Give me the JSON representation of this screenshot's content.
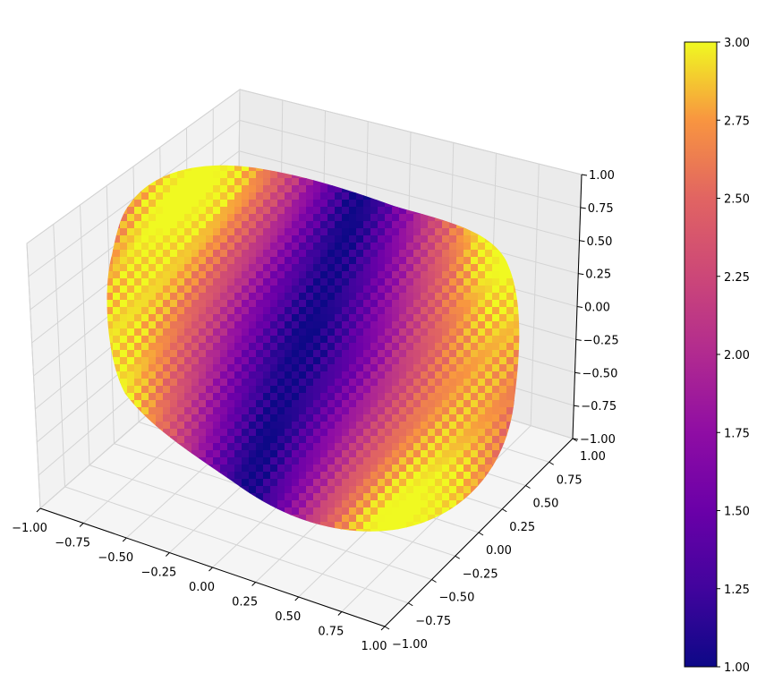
{
  "chart_data": {
    "type": "surface3d",
    "title": "",
    "colormap": "plasma",
    "x_axis": {
      "range": [
        -1.0,
        1.0
      ],
      "ticks": [
        -1.0,
        -0.75,
        -0.5,
        -0.25,
        0.0,
        0.25,
        0.5,
        0.75,
        1.0
      ],
      "tick_labels": [
        "−1.00",
        "−0.75",
        "−0.50",
        "−0.25",
        "0.00",
        "0.25",
        "0.50",
        "0.75",
        "1.00"
      ]
    },
    "y_axis": {
      "range": [
        -1.0,
        1.0
      ],
      "ticks": [
        -1.0,
        -0.75,
        -0.5,
        -0.25,
        0.0,
        0.25,
        0.5,
        0.75,
        1.0
      ],
      "tick_labels": [
        "−1.00",
        "−0.75",
        "−0.50",
        "−0.25",
        "0.00",
        "0.25",
        "0.50",
        "0.75",
        "1.00"
      ]
    },
    "z_axis": {
      "range": [
        -1.0,
        1.0
      ],
      "ticks": [
        -1.0,
        -0.75,
        -0.5,
        -0.25,
        0.0,
        0.25,
        0.5,
        0.75,
        1.0
      ],
      "tick_labels": [
        "−1.00",
        "−0.75",
        "−0.50",
        "−0.25",
        "0.00",
        "0.25",
        "0.50",
        "0.75",
        "1.00"
      ]
    },
    "colorbar": {
      "range": [
        1.0,
        3.0
      ],
      "ticks": [
        1.0,
        1.25,
        1.5,
        1.75,
        2.0,
        2.25,
        2.5,
        2.75,
        3.0
      ],
      "tick_labels": [
        "1.00",
        "1.25",
        "1.50",
        "1.75",
        "2.00",
        "2.25",
        "2.50",
        "2.75",
        "3.00"
      ]
    },
    "surface": {
      "shape": "rounded box (superquadric), color varies around the surface",
      "color_value_range": [
        1.0,
        3.0
      ]
    },
    "grid": true,
    "legend": "none"
  }
}
